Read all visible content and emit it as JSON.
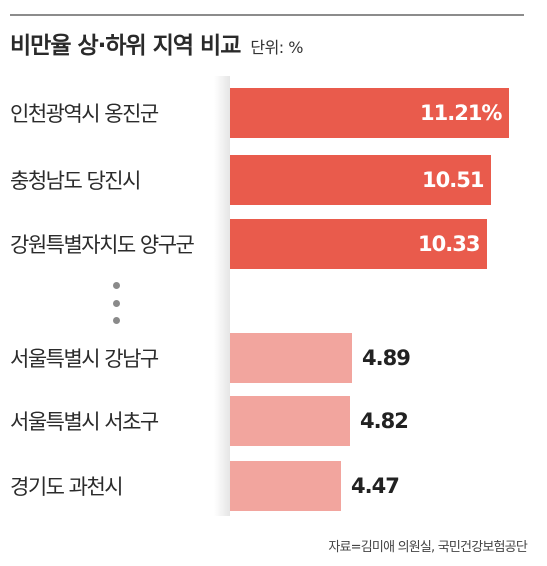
{
  "header": {
    "title": "비만율 상·하위 지역 비교",
    "unit": "단위: %"
  },
  "source": "자료=김미애 의원실, 국민건강보험공단",
  "colors": {
    "top_bar": "#e95b4c",
    "bottom_bar": "#f2a59e",
    "rule": "#8c8c8c"
  },
  "chart_data": {
    "type": "bar",
    "orientation": "horizontal",
    "title": "비만율 상·하위 지역 비교",
    "unit": "단위: %",
    "categories": [
      "인천광역시 옹진군",
      "충청남도 당진시",
      "강원특별자치도 양구군",
      "서울특별시 강남구",
      "서울특별시 서초구",
      "경기도 과천시"
    ],
    "values": [
      11.21,
      10.51,
      10.33,
      4.89,
      4.82,
      4.47
    ],
    "value_labels": [
      "11.21%",
      "10.51",
      "10.33",
      "4.89",
      "4.82",
      "4.47"
    ],
    "groups": [
      "top",
      "top",
      "top",
      "bottom",
      "bottom",
      "bottom"
    ],
    "xlim": [
      0,
      11.5
    ],
    "grid": false,
    "legend": "none"
  }
}
